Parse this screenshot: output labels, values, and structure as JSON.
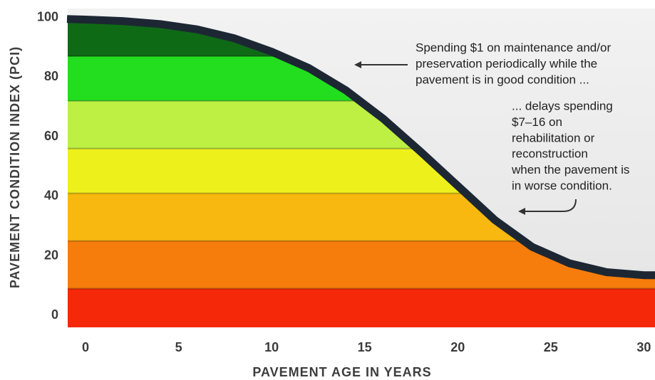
{
  "chart_data": {
    "type": "line",
    "xlabel": "PAVEMENT AGE IN YEARS",
    "ylabel": "PAVEMENT CONDITION INDEX (PCI)",
    "x": [
      -1,
      0,
      2,
      4,
      6,
      8,
      10,
      12,
      14,
      16,
      18,
      20,
      22,
      24,
      26,
      28,
      30,
      30.6
    ],
    "series": [
      {
        "color": "#1c2733",
        "values": [
          99.5,
          99.3,
          98.8,
          97.8,
          96,
          93,
          88.5,
          83,
          75.5,
          66,
          55,
          43.5,
          32,
          23,
          17.5,
          14.5,
          13.5,
          13.5
        ]
      }
    ],
    "bands": [
      {
        "upper": 9,
        "color": "#f5280a"
      },
      {
        "upper": 25,
        "color": "#f67c0b"
      },
      {
        "upper": 41,
        "color": "#f8b80f"
      },
      {
        "upper": 56,
        "color": "#eef01c"
      },
      {
        "upper": 72,
        "color": "#bdf043"
      },
      {
        "upper": 87,
        "color": "#22de1e"
      },
      {
        "upper": 103,
        "color": "#0f6a16"
      }
    ],
    "xlim": [
      -0.96,
      30.6
    ],
    "ylim": [
      -4,
      103
    ],
    "xticks": [
      0,
      5,
      10,
      15,
      20,
      25,
      30
    ],
    "yticks": [
      0,
      20,
      40,
      60,
      80,
      100
    ],
    "annotations": [
      {
        "lines": [
          "Spending $1 on maintenance and/or",
          "preservation periodically while the",
          "pavement is in good condition ..."
        ]
      },
      {
        "lines": [
          "... delays spending",
          "$7–16 on",
          "rehabilitation or",
          "reconstruction",
          "when the pavement is",
          "in worse condition."
        ]
      }
    ]
  }
}
